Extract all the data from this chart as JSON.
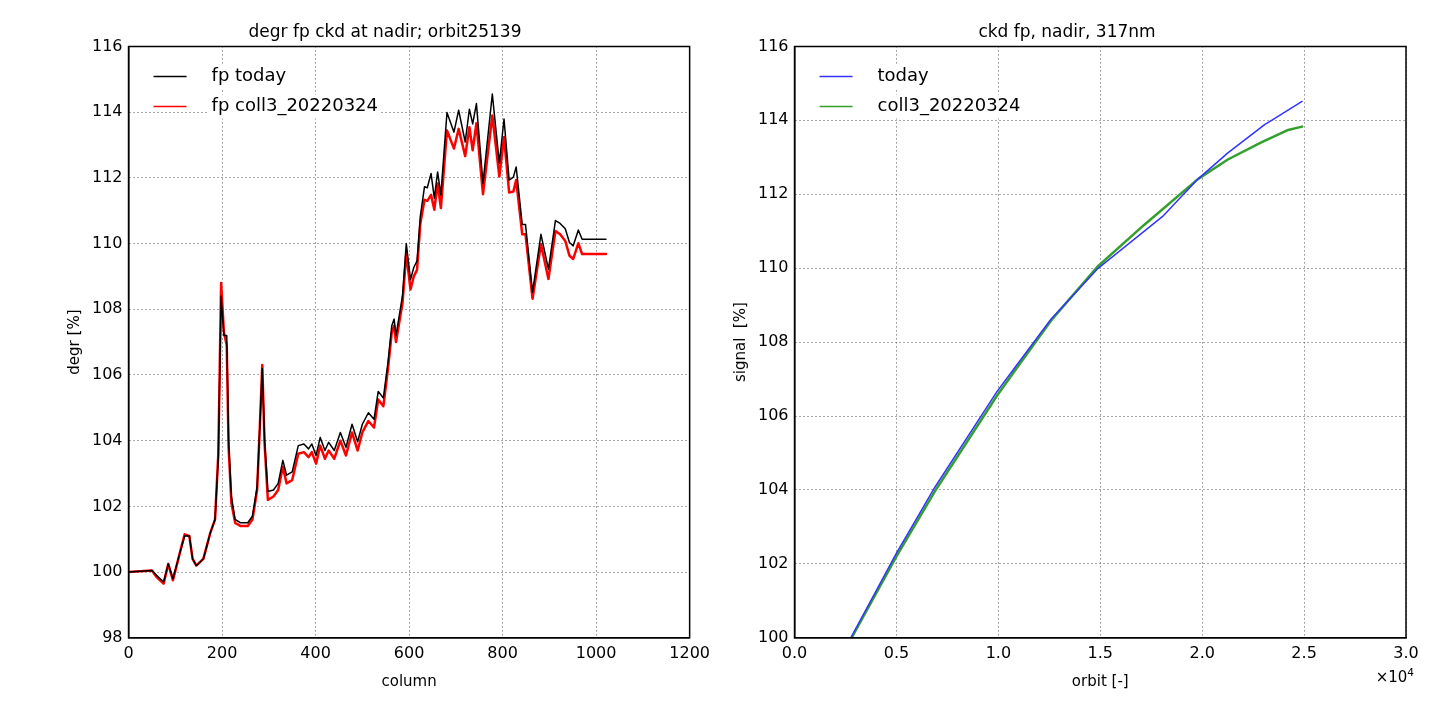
{
  "chart_data": [
    {
      "type": "line",
      "title": "degr fp ckd at nadir; orbit25139",
      "xlabel": "column",
      "ylabel": "degr [%]",
      "xlim": [
        0,
        1200
      ],
      "xticks": [
        0,
        200,
        400,
        600,
        800,
        1000,
        1200
      ],
      "ylim": [
        98,
        116
      ],
      "yticks": [
        98,
        100,
        102,
        104,
        106,
        108,
        110,
        112,
        114,
        116
      ],
      "grid": true,
      "legend": "top left",
      "marker": "none",
      "line_style": "solid",
      "series": [
        {
          "name": "fp today",
          "color": "#000000",
          "x": [
            0,
            50,
            60,
            75,
            85,
            95,
            110,
            120,
            130,
            137,
            145,
            160,
            175,
            185,
            192,
            198,
            204,
            210,
            214,
            220,
            228,
            240,
            255,
            265,
            275,
            281,
            286,
            291,
            298,
            310,
            320,
            330,
            338,
            350,
            363,
            375,
            385,
            392,
            401,
            410,
            420,
            428,
            440,
            453,
            465,
            478,
            490,
            500,
            513,
            525,
            534,
            545,
            555,
            563,
            568,
            572,
            586,
            594,
            603,
            610,
            617,
            624,
            633,
            639,
            647,
            654,
            661,
            668,
            681,
            696,
            706,
            720,
            729,
            736,
            744,
            758,
            778,
            793,
            803,
            814,
            823,
            829,
            842,
            849,
            864,
            882,
            898,
            913,
            923,
            934,
            943,
            951,
            962,
            970,
            1021
          ],
          "values": [
            100.0,
            100.05,
            99.9,
            99.7,
            100.25,
            99.8,
            100.6,
            101.1,
            101.1,
            100.4,
            100.2,
            100.4,
            101.2,
            101.6,
            103.5,
            108.4,
            107.2,
            107.2,
            104.0,
            102.3,
            101.6,
            101.5,
            101.5,
            101.7,
            102.6,
            104.5,
            106.2,
            104.0,
            102.45,
            102.5,
            102.7,
            103.4,
            102.95,
            103.05,
            103.85,
            103.9,
            103.75,
            103.9,
            103.55,
            104.1,
            103.7,
            103.95,
            103.7,
            104.25,
            103.8,
            104.5,
            103.97,
            104.5,
            104.85,
            104.65,
            105.5,
            105.3,
            106.4,
            107.5,
            107.7,
            107.2,
            108.42,
            110.0,
            108.9,
            109.27,
            109.47,
            110.83,
            111.73,
            111.7,
            112.13,
            111.38,
            112.18,
            111.48,
            113.99,
            113.39,
            114.06,
            113.09,
            114.09,
            113.64,
            114.26,
            111.83,
            114.55,
            112.44,
            113.79,
            111.93,
            112.02,
            112.33,
            110.58,
            110.58,
            108.52,
            110.28,
            109.22,
            110.7,
            110.61,
            110.45,
            110.03,
            109.93,
            110.41,
            110.13,
            110.13
          ]
        },
        {
          "name": "fp coll3_20220324",
          "color": "#ff0000",
          "x": [
            0,
            50,
            60,
            75,
            85,
            95,
            110,
            120,
            130,
            137,
            145,
            160,
            175,
            185,
            192,
            198,
            204,
            210,
            214,
            220,
            228,
            240,
            255,
            265,
            275,
            281,
            286,
            291,
            298,
            310,
            320,
            330,
            338,
            350,
            363,
            375,
            385,
            392,
            401,
            410,
            420,
            428,
            440,
            453,
            465,
            478,
            490,
            500,
            513,
            525,
            534,
            545,
            555,
            563,
            568,
            572,
            586,
            594,
            603,
            610,
            617,
            624,
            633,
            639,
            647,
            654,
            661,
            668,
            681,
            696,
            706,
            720,
            729,
            736,
            744,
            758,
            778,
            793,
            803,
            814,
            823,
            829,
            842,
            849,
            864,
            882,
            898,
            913,
            923,
            934,
            943,
            951,
            962,
            970,
            1021
          ],
          "values": [
            100.0,
            100.05,
            99.85,
            99.65,
            100.25,
            99.75,
            100.6,
            101.15,
            101.1,
            100.4,
            100.2,
            100.4,
            101.2,
            101.6,
            103.6,
            108.8,
            107.3,
            106.9,
            103.8,
            102.1,
            101.5,
            101.4,
            101.4,
            101.6,
            102.5,
            104.5,
            106.3,
            103.9,
            102.2,
            102.3,
            102.5,
            103.2,
            102.7,
            102.8,
            103.6,
            103.65,
            103.5,
            103.65,
            103.3,
            103.85,
            103.45,
            103.7,
            103.45,
            104.0,
            103.55,
            104.25,
            103.7,
            104.25,
            104.6,
            104.4,
            105.25,
            105.05,
            106.2,
            107.3,
            107.5,
            107.0,
            108.2,
            109.7,
            108.6,
            109.0,
            109.2,
            110.6,
            111.33,
            111.3,
            111.48,
            111.03,
            111.83,
            111.08,
            113.44,
            112.89,
            113.49,
            112.66,
            113.54,
            112.84,
            113.66,
            111.5,
            113.9,
            112.04,
            113.24,
            111.55,
            111.58,
            111.93,
            110.28,
            110.28,
            108.32,
            109.98,
            108.92,
            110.38,
            110.28,
            110.08,
            109.63,
            109.53,
            110.01,
            109.68,
            109.68
          ]
        }
      ]
    },
    {
      "type": "line",
      "title": "ckd fp, nadir, 317nm",
      "xlabel": "orbit [-]",
      "ylabel": "signal  [%]",
      "annotations": [
        "×10$^{4}$"
      ],
      "xlim": [
        0,
        3
      ],
      "xticks": [
        {
          "value": 0,
          "label": "0.0"
        },
        {
          "value": 0.5,
          "label": "0.5"
        },
        {
          "value": 1,
          "label": "1.0"
        },
        {
          "value": 1.5,
          "label": "1.5"
        },
        {
          "value": 2,
          "label": "2.0"
        },
        {
          "value": 2.5,
          "label": "2.5"
        },
        {
          "value": 3,
          "label": "3.0"
        }
      ],
      "ylim": [
        100,
        116
      ],
      "yticks": [
        100,
        102,
        104,
        106,
        108,
        110,
        112,
        114,
        116
      ],
      "grid": true,
      "legend": "top left",
      "marker": "none",
      "line_style": "solid",
      "series": [
        {
          "name": "today",
          "color": "#3333ff",
          "x": [
            0.276,
            0.5,
            0.687,
            0.993,
            1.258,
            1.486,
            1.806,
            1.979,
            2.126,
            2.308,
            2.49
          ],
          "values": [
            100.0,
            102.29,
            104.06,
            106.66,
            108.62,
            109.98,
            111.4,
            112.41,
            113.12,
            113.89,
            114.51
          ]
        },
        {
          "name": "coll3_20220324",
          "color": "#33a02c",
          "x": [
            0.28,
            0.5,
            0.687,
            0.993,
            1.258,
            1.486,
            1.715,
            1.979,
            2.126,
            2.285,
            2.422,
            2.49
          ],
          "values": [
            100.0,
            102.2,
            103.95,
            106.55,
            108.58,
            110.04,
            111.17,
            112.41,
            112.94,
            113.39,
            113.74,
            113.83
          ]
        }
      ]
    }
  ]
}
